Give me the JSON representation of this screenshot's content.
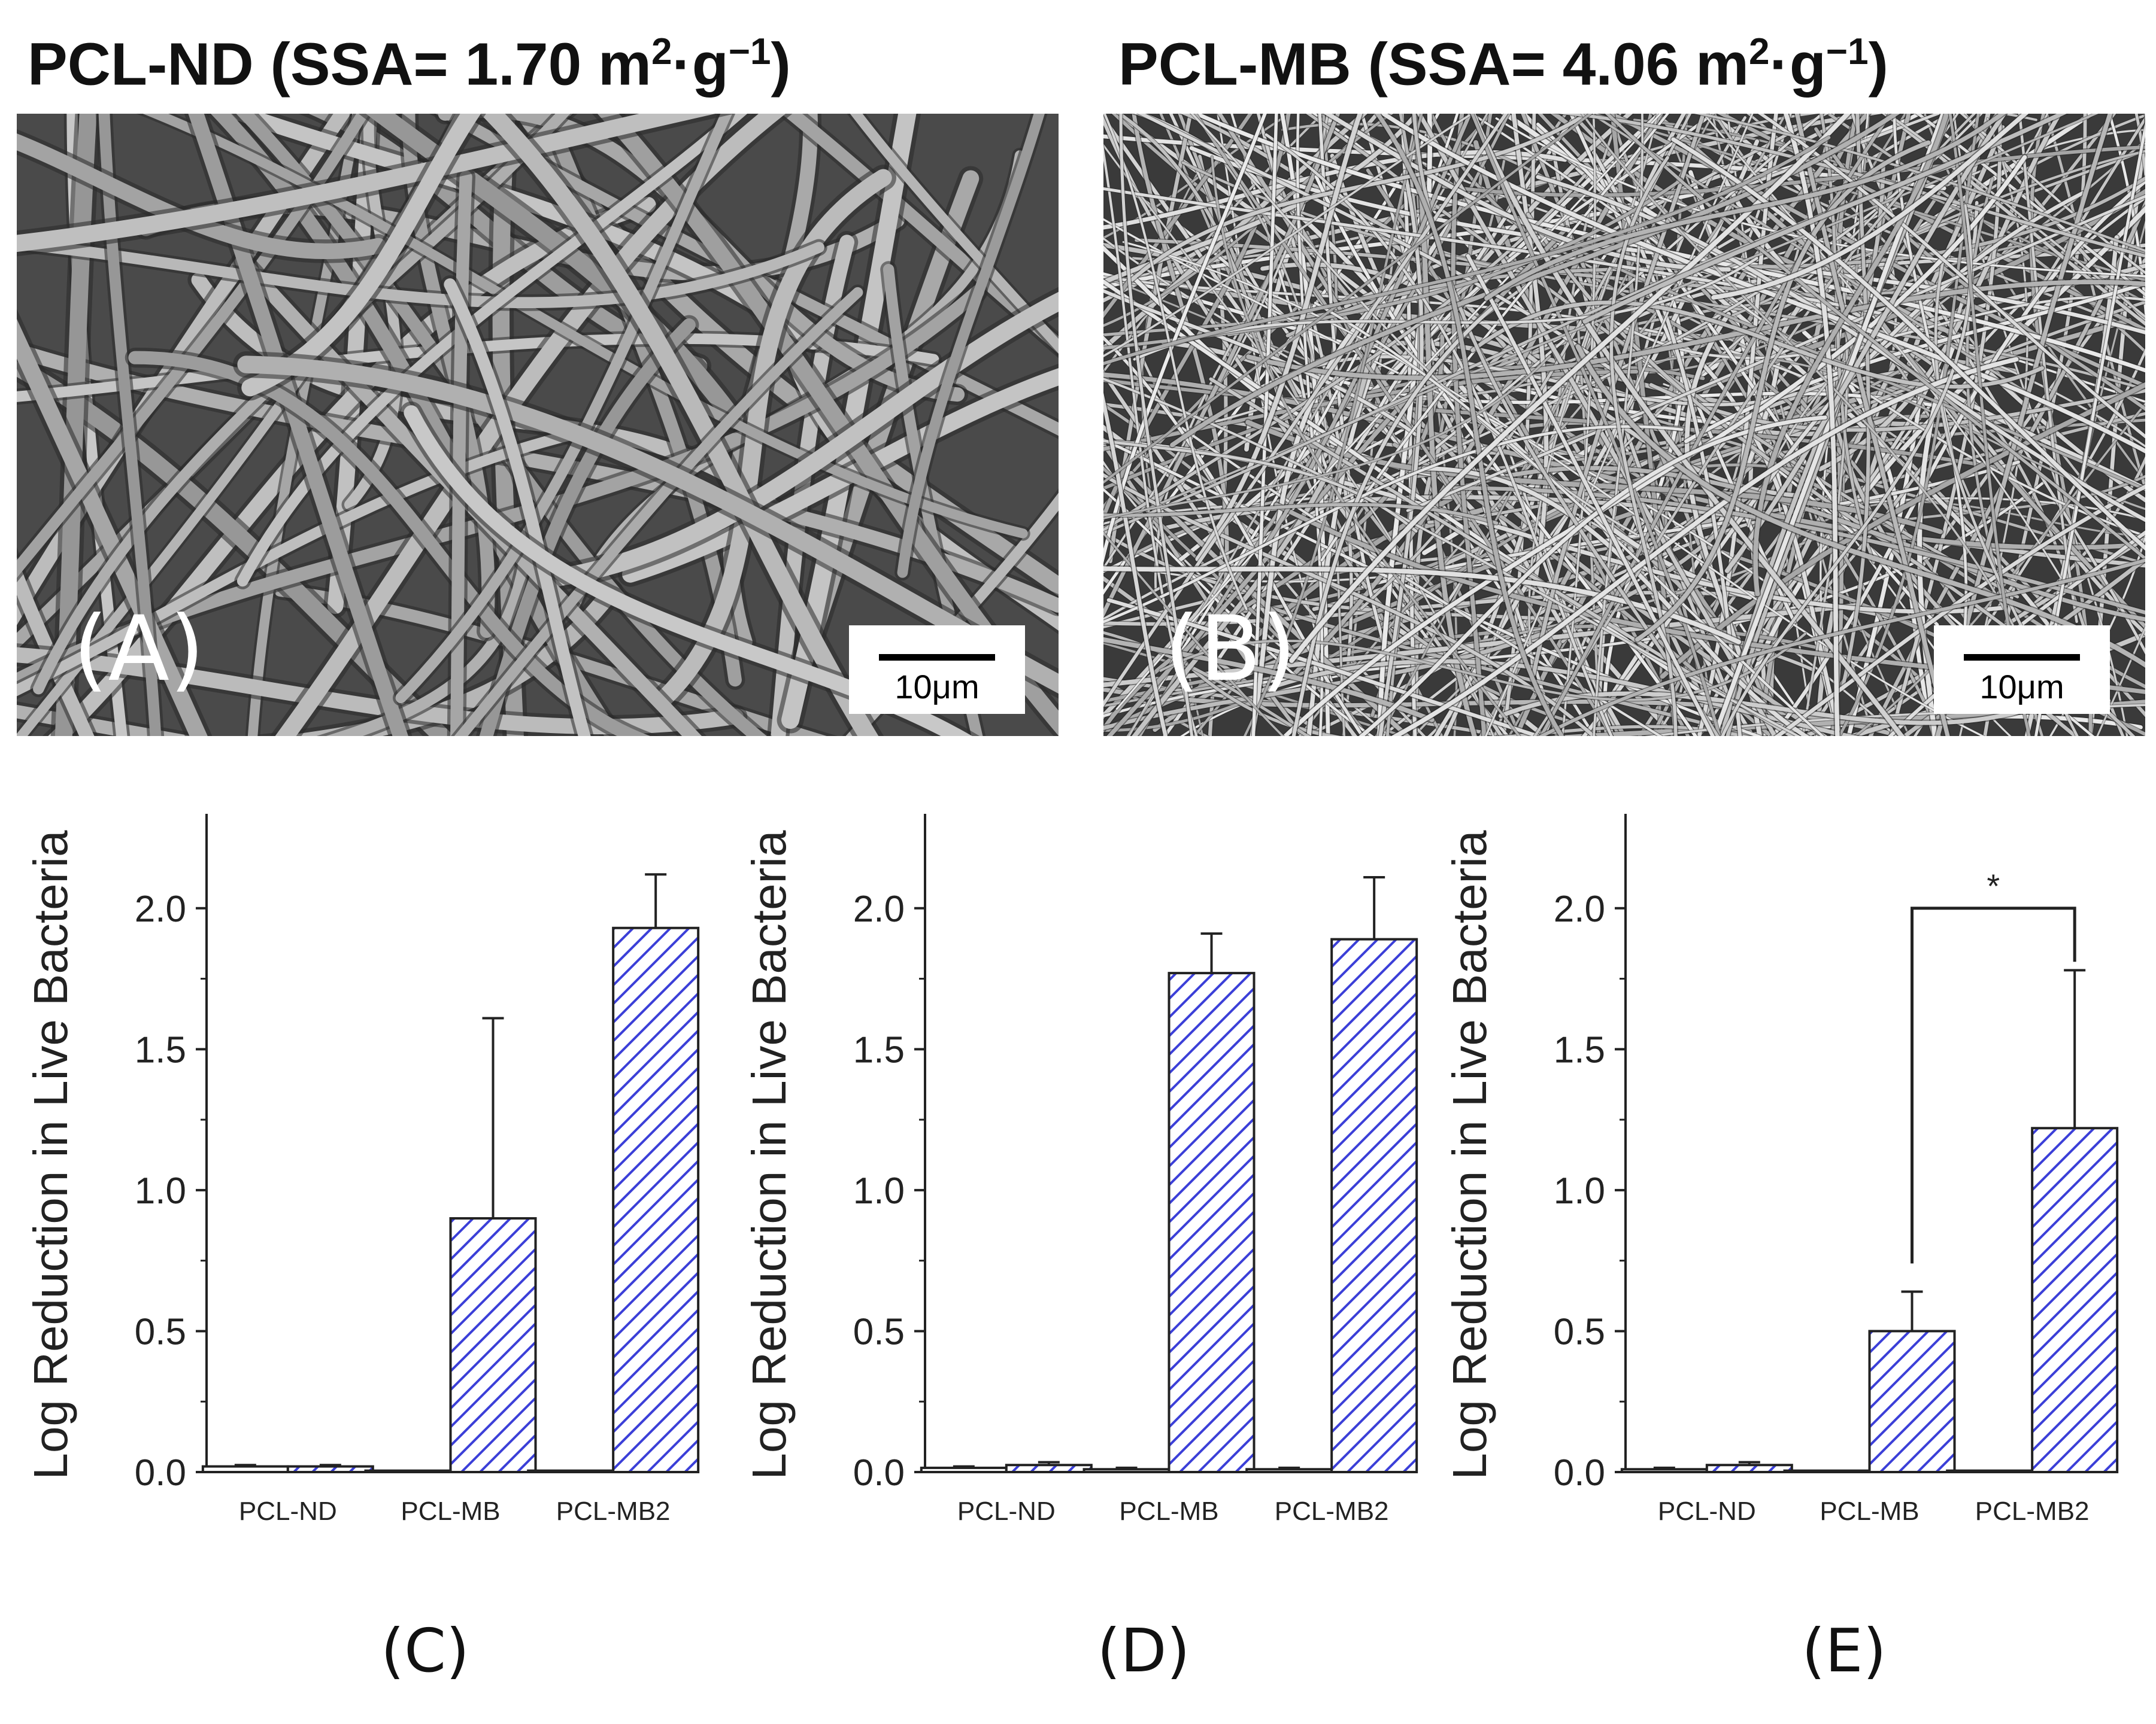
{
  "micrographs": [
    {
      "title_main": "PCL-ND (SSA= 1.70 m",
      "title_sup": "2",
      "title_mid": "·g",
      "title_sup2": "−1",
      "title_end": ")",
      "panel": "(A)",
      "scale_label": "10μm",
      "fiber_style": "thick"
    },
    {
      "title_main": "PCL-MB (SSA= 4.06 m",
      "title_sup": "2",
      "title_mid": "·g",
      "title_sup2": "−1",
      "title_end": ")",
      "panel": "(B)",
      "scale_label": "10μm",
      "fiber_style": "thin"
    }
  ],
  "colors": {
    "bar_hatch": "#3b3fd8",
    "bar_fill": "#ffffff",
    "axis": "#222222",
    "text": "#222222"
  },
  "chart_data": [
    {
      "type": "bar",
      "panel": "(C)",
      "ylabel": "Log Reduction in Live Bacteria",
      "categories": [
        "PCL-ND",
        "PCL-MB",
        "PCL-MB2"
      ],
      "ylim": [
        0,
        2.25
      ],
      "yticks": [
        "0.0",
        "0.5",
        "1.0",
        "1.5",
        "2.0"
      ],
      "series": [
        {
          "values": [
            0.02,
            0.005,
            0.005
          ],
          "errors": [
            0.005,
            0,
            0
          ],
          "style": "plain"
        },
        {
          "values": [
            0.02,
            0.9,
            1.93
          ],
          "errors": [
            0.005,
            0.71,
            0.19
          ],
          "style": "hatched"
        }
      ],
      "annotations": []
    },
    {
      "type": "bar",
      "panel": "(D)",
      "ylabel": "Log Reduction in Live Bacteria",
      "categories": [
        "PCL-ND",
        "PCL-MB",
        "PCL-MB2"
      ],
      "ylim": [
        0,
        2.25
      ],
      "yticks": [
        "0.0",
        "0.5",
        "1.0",
        "1.5",
        "2.0"
      ],
      "series": [
        {
          "values": [
            0.015,
            0.01,
            0.01
          ],
          "errors": [
            0.005,
            0.005,
            0.005
          ],
          "style": "plain"
        },
        {
          "values": [
            0.025,
            1.77,
            1.89
          ],
          "errors": [
            0.01,
            0.14,
            0.22
          ],
          "style": "hatched"
        }
      ],
      "annotations": []
    },
    {
      "type": "bar",
      "panel": "(E)",
      "ylabel": "Log Reduction in Live Bacteria",
      "categories": [
        "PCL-ND",
        "PCL-MB",
        "PCL-MB2"
      ],
      "ylim": [
        0,
        2.25
      ],
      "yticks": [
        "0.0",
        "0.5",
        "1.0",
        "1.5",
        "2.0"
      ],
      "series": [
        {
          "values": [
            0.01,
            0.005,
            0.005
          ],
          "errors": [
            0.005,
            0,
            0
          ],
          "style": "plain"
        },
        {
          "values": [
            0.025,
            0.5,
            1.22
          ],
          "errors": [
            0.01,
            0.14,
            0.56
          ],
          "style": "hatched"
        }
      ],
      "annotations": [
        {
          "type": "bracket",
          "from": 1,
          "to": 2,
          "y": 2.0,
          "label": "*"
        }
      ]
    }
  ]
}
